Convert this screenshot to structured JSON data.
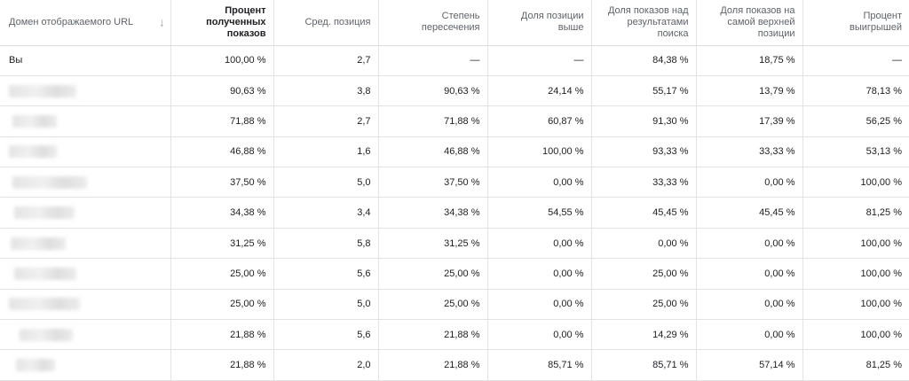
{
  "columns": [
    "Домен отображаемого URL",
    "Процент полученных показов",
    "Сред. позиция",
    "Степень пересечения",
    "Доля позиции выше",
    "Доля показов над результатами поиска",
    "Доля показов на самой верхней позиции",
    "Процент выигрышей"
  ],
  "rows": [
    {
      "domain": "Вы",
      "blurred": false,
      "values": [
        "100,00 %",
        "2,7",
        "—",
        "—",
        "84,38 %",
        "18,75 %",
        "—"
      ]
    },
    {
      "domain": "",
      "blurred": true,
      "values": [
        "90,63 %",
        "3,8",
        "90,63 %",
        "24,14 %",
        "55,17 %",
        "13,79 %",
        "78,13 %"
      ]
    },
    {
      "domain": "",
      "blurred": true,
      "values": [
        "71,88 %",
        "2,7",
        "71,88 %",
        "60,87 %",
        "91,30 %",
        "17,39 %",
        "56,25 %"
      ]
    },
    {
      "domain": "",
      "blurred": true,
      "values": [
        "46,88 %",
        "1,6",
        "46,88 %",
        "100,00 %",
        "93,33 %",
        "33,33 %",
        "53,13 %"
      ]
    },
    {
      "domain": "",
      "blurred": true,
      "values": [
        "37,50 %",
        "5,0",
        "37,50 %",
        "0,00 %",
        "33,33 %",
        "0,00 %",
        "100,00 %"
      ]
    },
    {
      "domain": "",
      "blurred": true,
      "values": [
        "34,38 %",
        "3,4",
        "34,38 %",
        "54,55 %",
        "45,45 %",
        "45,45 %",
        "81,25 %"
      ]
    },
    {
      "domain": "",
      "blurred": true,
      "values": [
        "31,25 %",
        "5,8",
        "31,25 %",
        "0,00 %",
        "0,00 %",
        "0,00 %",
        "100,00 %"
      ]
    },
    {
      "domain": "",
      "blurred": true,
      "values": [
        "25,00 %",
        "5,6",
        "25,00 %",
        "0,00 %",
        "25,00 %",
        "0,00 %",
        "100,00 %"
      ]
    },
    {
      "domain": "",
      "blurred": true,
      "values": [
        "25,00 %",
        "5,0",
        "25,00 %",
        "0,00 %",
        "25,00 %",
        "0,00 %",
        "100,00 %"
      ]
    },
    {
      "domain": "",
      "blurred": true,
      "values": [
        "21,88 %",
        "5,6",
        "21,88 %",
        "0,00 %",
        "14,29 %",
        "0,00 %",
        "100,00 %"
      ]
    },
    {
      "domain": "",
      "blurred": true,
      "values": [
        "21,88 %",
        "2,0",
        "21,88 %",
        "85,71 %",
        "85,71 %",
        "57,14 %",
        "81,25 %"
      ]
    }
  ]
}
